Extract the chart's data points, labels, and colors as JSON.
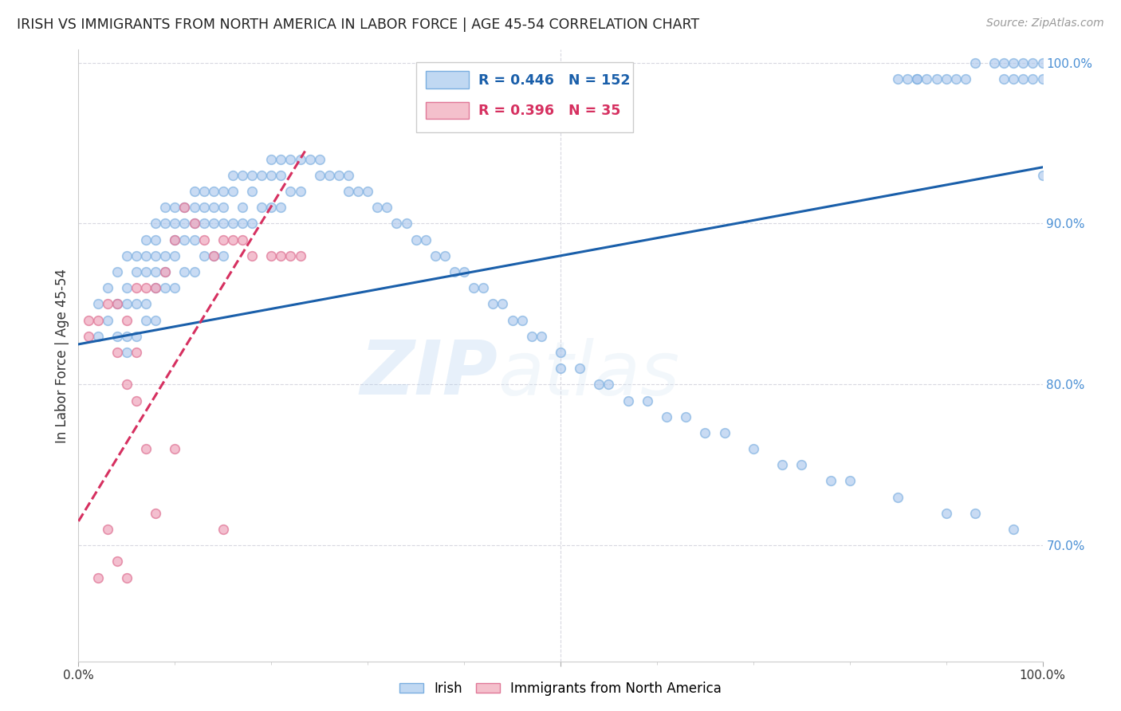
{
  "title": "IRISH VS IMMIGRANTS FROM NORTH AMERICA IN LABOR FORCE | AGE 45-54 CORRELATION CHART",
  "source": "Source: ZipAtlas.com",
  "ylabel": "In Labor Force | Age 45-54",
  "blue_label": "Irish",
  "pink_label": "Immigrants from North America",
  "blue_R": 0.446,
  "blue_N": 152,
  "pink_R": 0.396,
  "pink_N": 35,
  "blue_color": "#adc8ed",
  "pink_color": "#f0aabf",
  "blue_line_color": "#1a5faa",
  "pink_line_color": "#d63060",
  "background_color": "#ffffff",
  "grid_color": "#d8d8e0",
  "xmin": 0.0,
  "xmax": 1.0,
  "ymin": 0.628,
  "ymax": 1.008,
  "y_ticks": [
    0.7,
    0.8,
    0.9,
    1.0
  ],
  "y_tick_labels": [
    "70.0%",
    "80.0%",
    "90.0%",
    "100.0%"
  ],
  "blue_x": [
    0.02,
    0.02,
    0.03,
    0.03,
    0.04,
    0.04,
    0.04,
    0.05,
    0.05,
    0.05,
    0.05,
    0.05,
    0.06,
    0.06,
    0.06,
    0.06,
    0.07,
    0.07,
    0.07,
    0.07,
    0.07,
    0.08,
    0.08,
    0.08,
    0.08,
    0.08,
    0.08,
    0.09,
    0.09,
    0.09,
    0.09,
    0.09,
    0.1,
    0.1,
    0.1,
    0.1,
    0.1,
    0.11,
    0.11,
    0.11,
    0.11,
    0.12,
    0.12,
    0.12,
    0.12,
    0.12,
    0.13,
    0.13,
    0.13,
    0.13,
    0.14,
    0.14,
    0.14,
    0.14,
    0.15,
    0.15,
    0.15,
    0.15,
    0.16,
    0.16,
    0.16,
    0.17,
    0.17,
    0.17,
    0.18,
    0.18,
    0.18,
    0.19,
    0.19,
    0.2,
    0.2,
    0.2,
    0.21,
    0.21,
    0.21,
    0.22,
    0.22,
    0.23,
    0.23,
    0.24,
    0.25,
    0.25,
    0.26,
    0.27,
    0.28,
    0.28,
    0.29,
    0.3,
    0.31,
    0.32,
    0.33,
    0.34,
    0.35,
    0.36,
    0.37,
    0.38,
    0.39,
    0.4,
    0.41,
    0.42,
    0.43,
    0.44,
    0.45,
    0.46,
    0.47,
    0.48,
    0.5,
    0.5,
    0.52,
    0.54,
    0.55,
    0.57,
    0.59,
    0.61,
    0.63,
    0.65,
    0.67,
    0.7,
    0.73,
    0.75,
    0.78,
    0.8,
    0.85,
    0.9,
    0.93,
    0.97,
    1.0,
    0.87,
    0.89,
    0.91,
    0.93,
    0.95,
    0.96,
    0.97,
    0.98,
    0.99,
    0.99,
    1.0,
    1.0,
    0.96,
    0.97,
    0.98,
    0.88,
    0.9,
    0.92,
    0.85,
    0.86,
    0.87
  ],
  "blue_y": [
    0.85,
    0.83,
    0.86,
    0.84,
    0.87,
    0.85,
    0.83,
    0.88,
    0.86,
    0.85,
    0.83,
    0.82,
    0.88,
    0.87,
    0.85,
    0.83,
    0.89,
    0.88,
    0.87,
    0.85,
    0.84,
    0.9,
    0.89,
    0.88,
    0.87,
    0.86,
    0.84,
    0.91,
    0.9,
    0.88,
    0.87,
    0.86,
    0.91,
    0.9,
    0.89,
    0.88,
    0.86,
    0.91,
    0.9,
    0.89,
    0.87,
    0.92,
    0.91,
    0.9,
    0.89,
    0.87,
    0.92,
    0.91,
    0.9,
    0.88,
    0.92,
    0.91,
    0.9,
    0.88,
    0.92,
    0.91,
    0.9,
    0.88,
    0.93,
    0.92,
    0.9,
    0.93,
    0.91,
    0.9,
    0.93,
    0.92,
    0.9,
    0.93,
    0.91,
    0.94,
    0.93,
    0.91,
    0.94,
    0.93,
    0.91,
    0.94,
    0.92,
    0.94,
    0.92,
    0.94,
    0.94,
    0.93,
    0.93,
    0.93,
    0.93,
    0.92,
    0.92,
    0.92,
    0.91,
    0.91,
    0.9,
    0.9,
    0.89,
    0.89,
    0.88,
    0.88,
    0.87,
    0.87,
    0.86,
    0.86,
    0.85,
    0.85,
    0.84,
    0.84,
    0.83,
    0.83,
    0.82,
    0.81,
    0.81,
    0.8,
    0.8,
    0.79,
    0.79,
    0.78,
    0.78,
    0.77,
    0.77,
    0.76,
    0.75,
    0.75,
    0.74,
    0.74,
    0.73,
    0.72,
    0.72,
    0.71,
    0.93,
    0.99,
    0.99,
    0.99,
    1.0,
    1.0,
    1.0,
    1.0,
    1.0,
    1.0,
    0.99,
    1.0,
    0.99,
    0.99,
    0.99,
    0.99,
    0.99,
    0.99,
    0.99,
    0.99,
    0.99,
    0.99
  ],
  "pink_x": [
    0.01,
    0.01,
    0.02,
    0.02,
    0.03,
    0.03,
    0.04,
    0.04,
    0.04,
    0.05,
    0.05,
    0.05,
    0.06,
    0.06,
    0.06,
    0.07,
    0.07,
    0.08,
    0.08,
    0.09,
    0.1,
    0.1,
    0.11,
    0.12,
    0.13,
    0.14,
    0.15,
    0.15,
    0.16,
    0.17,
    0.18,
    0.2,
    0.21,
    0.22,
    0.23
  ],
  "pink_y": [
    0.84,
    0.83,
    0.84,
    0.68,
    0.85,
    0.71,
    0.85,
    0.82,
    0.69,
    0.84,
    0.8,
    0.68,
    0.86,
    0.82,
    0.79,
    0.86,
    0.76,
    0.86,
    0.72,
    0.87,
    0.89,
    0.76,
    0.91,
    0.9,
    0.89,
    0.88,
    0.89,
    0.71,
    0.89,
    0.89,
    0.88,
    0.88,
    0.88,
    0.88,
    0.88
  ],
  "blue_line_x0": 0.0,
  "blue_line_x1": 1.0,
  "blue_line_y0": 0.825,
  "blue_line_y1": 0.935,
  "pink_line_x0": 0.0,
  "pink_line_x1": 0.235,
  "pink_line_y0": 0.715,
  "pink_line_y1": 0.945
}
